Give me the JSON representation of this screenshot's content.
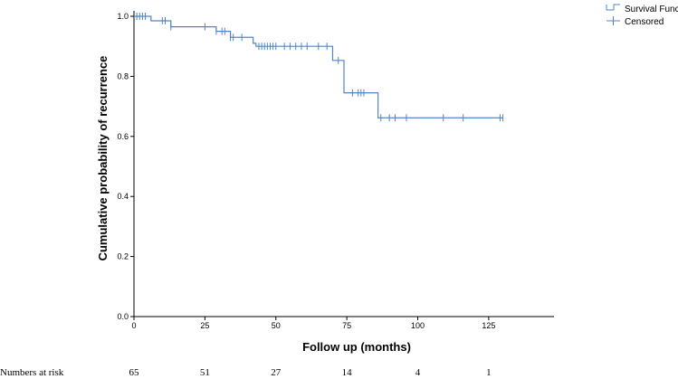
{
  "chart_data": {
    "type": "line",
    "step": true,
    "xlabel": "Follow up (months)",
    "ylabel": "Cumulative probability of recurrence",
    "xlim": [
      0,
      148
    ],
    "ylim": [
      0,
      1.0
    ],
    "xticks": [
      0,
      25,
      50,
      75,
      100,
      125
    ],
    "yticks": [
      0.0,
      0.2,
      0.4,
      0.6,
      0.8,
      1.0
    ],
    "grid": false,
    "legend_position": "top-right",
    "series": [
      {
        "name": "Survival Function",
        "color": "#4f86c6",
        "steps": [
          [
            0,
            1.0
          ],
          [
            6,
            0.985
          ],
          [
            13,
            0.965
          ],
          [
            29,
            0.95
          ],
          [
            34,
            0.93
          ],
          [
            42,
            0.91
          ],
          [
            43,
            0.9
          ],
          [
            70,
            0.853
          ],
          [
            74,
            0.745
          ],
          [
            86,
            0.662
          ],
          [
            130,
            0.662
          ]
        ]
      },
      {
        "name": "Censored",
        "color": "#4f86c6",
        "marker": "plus",
        "points": [
          [
            1,
            1.0
          ],
          [
            2,
            1.0
          ],
          [
            3,
            1.0
          ],
          [
            4,
            1.0
          ],
          [
            10,
            0.985
          ],
          [
            11,
            0.985
          ],
          [
            13,
            0.965
          ],
          [
            25,
            0.965
          ],
          [
            29,
            0.95
          ],
          [
            31,
            0.95
          ],
          [
            32,
            0.95
          ],
          [
            34,
            0.93
          ],
          [
            35,
            0.93
          ],
          [
            38,
            0.93
          ],
          [
            44,
            0.9
          ],
          [
            45,
            0.9
          ],
          [
            46,
            0.9
          ],
          [
            47,
            0.9
          ],
          [
            48,
            0.9
          ],
          [
            49,
            0.9
          ],
          [
            50,
            0.9
          ],
          [
            53,
            0.9
          ],
          [
            55,
            0.9
          ],
          [
            57,
            0.9
          ],
          [
            59,
            0.9
          ],
          [
            61,
            0.9
          ],
          [
            65,
            0.9
          ],
          [
            68,
            0.9
          ],
          [
            72,
            0.853
          ],
          [
            77,
            0.745
          ],
          [
            79,
            0.745
          ],
          [
            80,
            0.745
          ],
          [
            81,
            0.745
          ],
          [
            87,
            0.662
          ],
          [
            90,
            0.662
          ],
          [
            92,
            0.662
          ],
          [
            96,
            0.662
          ],
          [
            109,
            0.662
          ],
          [
            116,
            0.662
          ],
          [
            129,
            0.662
          ],
          [
            130,
            0.662
          ]
        ]
      }
    ],
    "risk_table": {
      "label": "Numbers at risk",
      "values": [
        "65",
        "51",
        "27",
        "14",
        "4",
        "1"
      ]
    }
  }
}
